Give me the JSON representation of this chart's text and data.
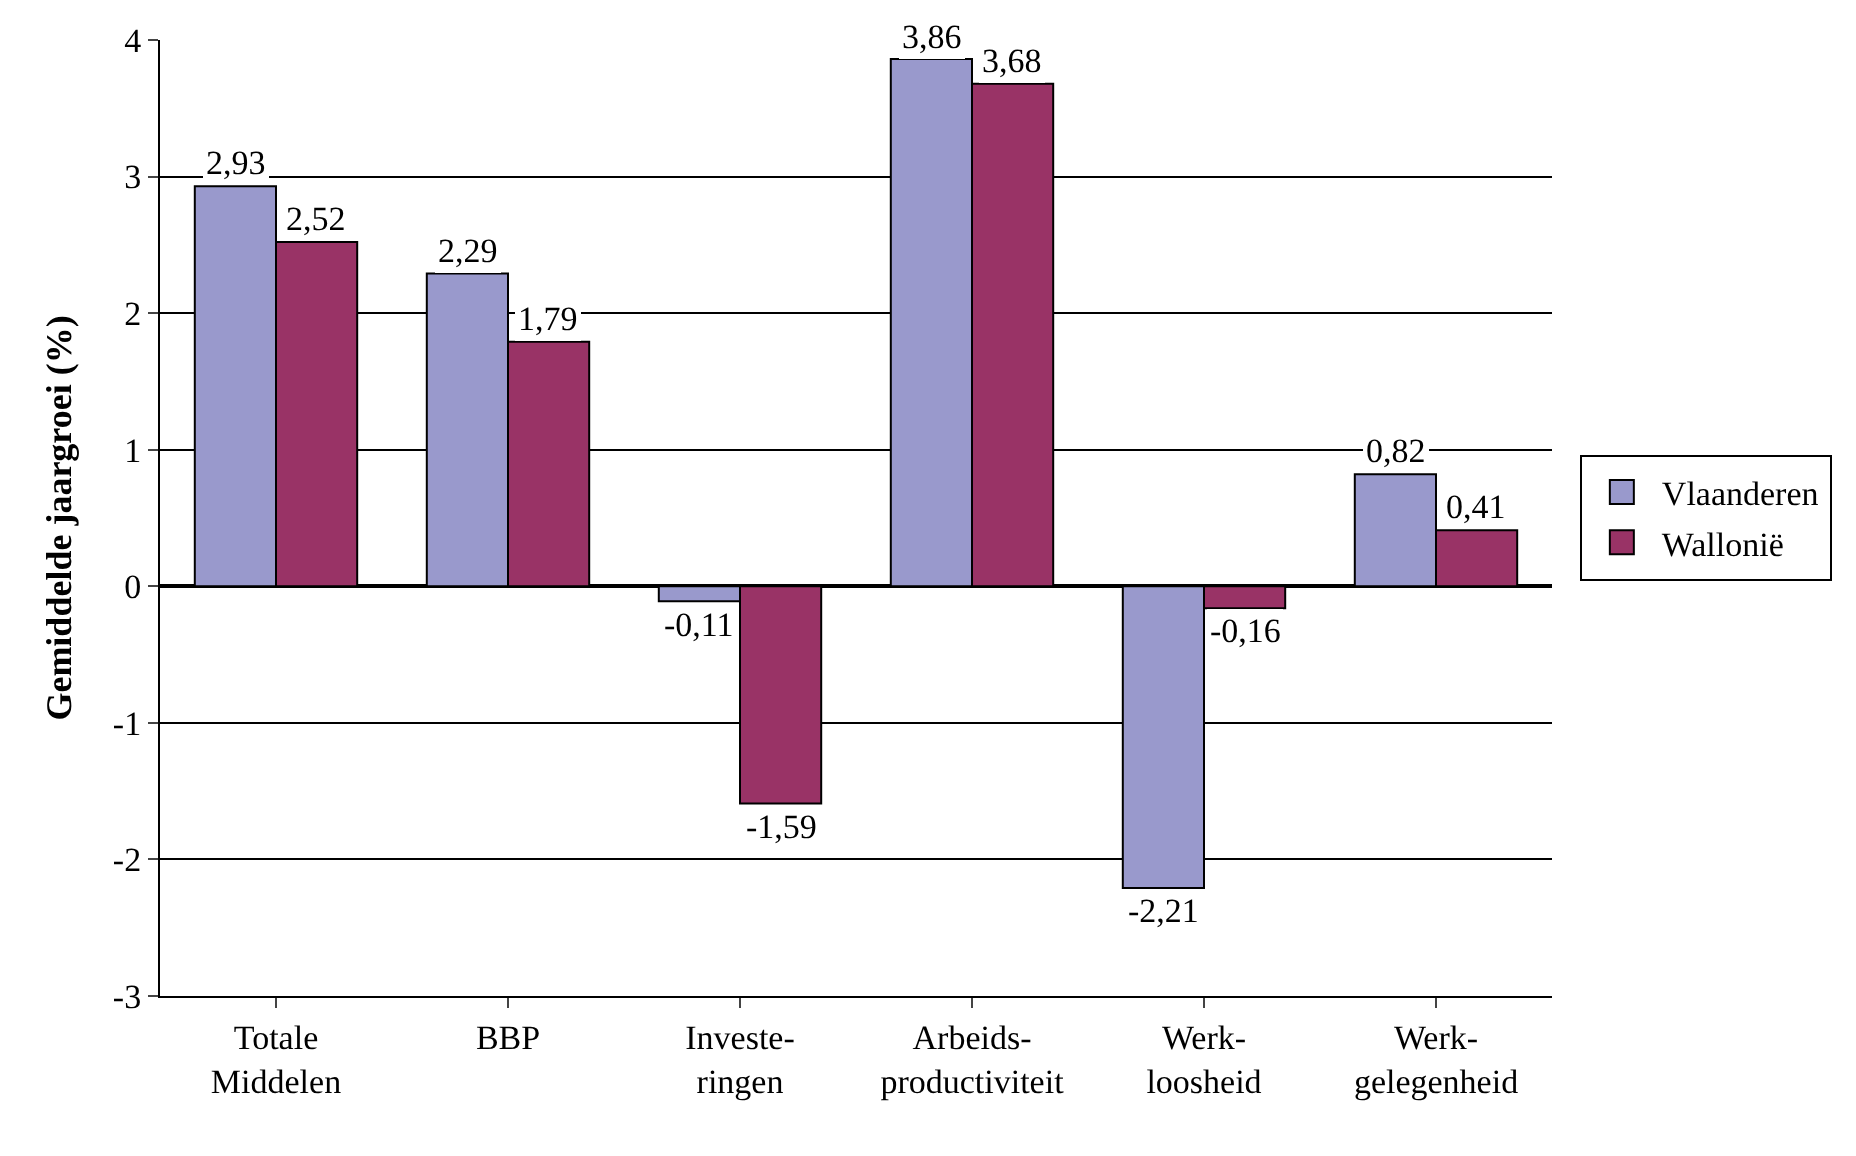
{
  "chart_data": {
    "type": "bar",
    "ylabel": "Gemiddelde jaargroei (%)",
    "categories": [
      "Totale\nMiddelen",
      "BBP",
      "Investe-\nringen",
      "Arbeids-\nproductiviteit",
      "Werk-\nloosheid",
      "Werk-\ngelegenheid"
    ],
    "series": [
      {
        "name": "Vlaanderen",
        "color": "#9999cc",
        "values": [
          2.93,
          2.29,
          -0.11,
          3.86,
          -2.21,
          0.82
        ],
        "value_labels": [
          "2,93",
          "2,29",
          "-0,11",
          "3,86",
          "-2,21",
          "0,82"
        ]
      },
      {
        "name": "Wallonië",
        "color": "#993366",
        "values": [
          2.52,
          1.79,
          -1.59,
          3.68,
          -0.16,
          0.41
        ],
        "value_labels": [
          "2,52",
          "1,79",
          "-1,59",
          "3,68",
          "-0,16",
          "0,41"
        ]
      }
    ],
    "ylim": [
      -3,
      4
    ],
    "yticks": [
      -3,
      -2,
      -1,
      0,
      1,
      2,
      3,
      4
    ],
    "grid": "y",
    "legend": "right"
  }
}
